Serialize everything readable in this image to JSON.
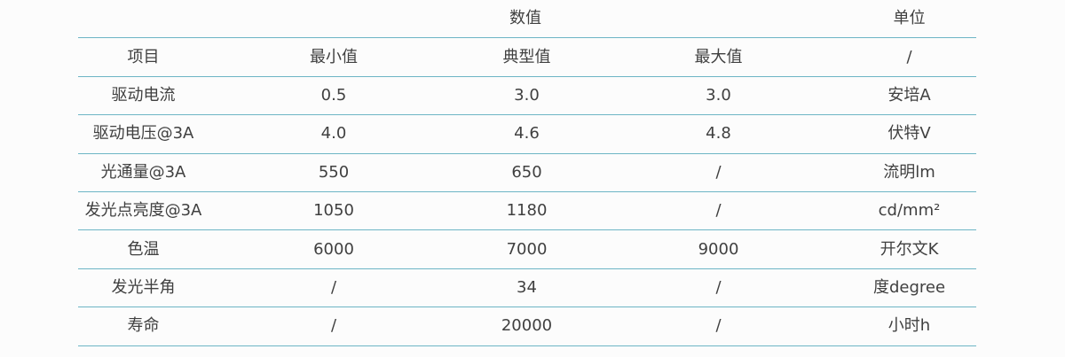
{
  "style": {
    "border_color": "#6db5c5",
    "text_color": "#404040",
    "background": "#fcfcfc"
  },
  "chart_data": {
    "type": "table",
    "title": "",
    "group_header": {
      "values_label": "数值",
      "unit_label": "单位"
    },
    "columns": [
      "项目",
      "最小值",
      "典型值",
      "最大值",
      "/"
    ],
    "rows": [
      [
        "驱动电流",
        "0.5",
        "3.0",
        "3.0",
        "安培A"
      ],
      [
        "驱动电压@3A",
        "4.0",
        "4.6",
        "4.8",
        "伏特V"
      ],
      [
        "光通量@3A",
        "550",
        "650",
        "/",
        "流明lm"
      ],
      [
        "发光点亮度@3A",
        "1050",
        "1180",
        "/",
        "cd/mm²"
      ],
      [
        "色温",
        "6000",
        "7000",
        "9000",
        "开尔文K"
      ],
      [
        "发光半角",
        "/",
        "34",
        "/",
        "度degree"
      ],
      [
        "寿命",
        "/",
        "20000",
        "/",
        "小时h"
      ]
    ],
    "layout": {
      "grid": "horizontal-rules-only",
      "header_group_span": "columns 2-4"
    }
  }
}
